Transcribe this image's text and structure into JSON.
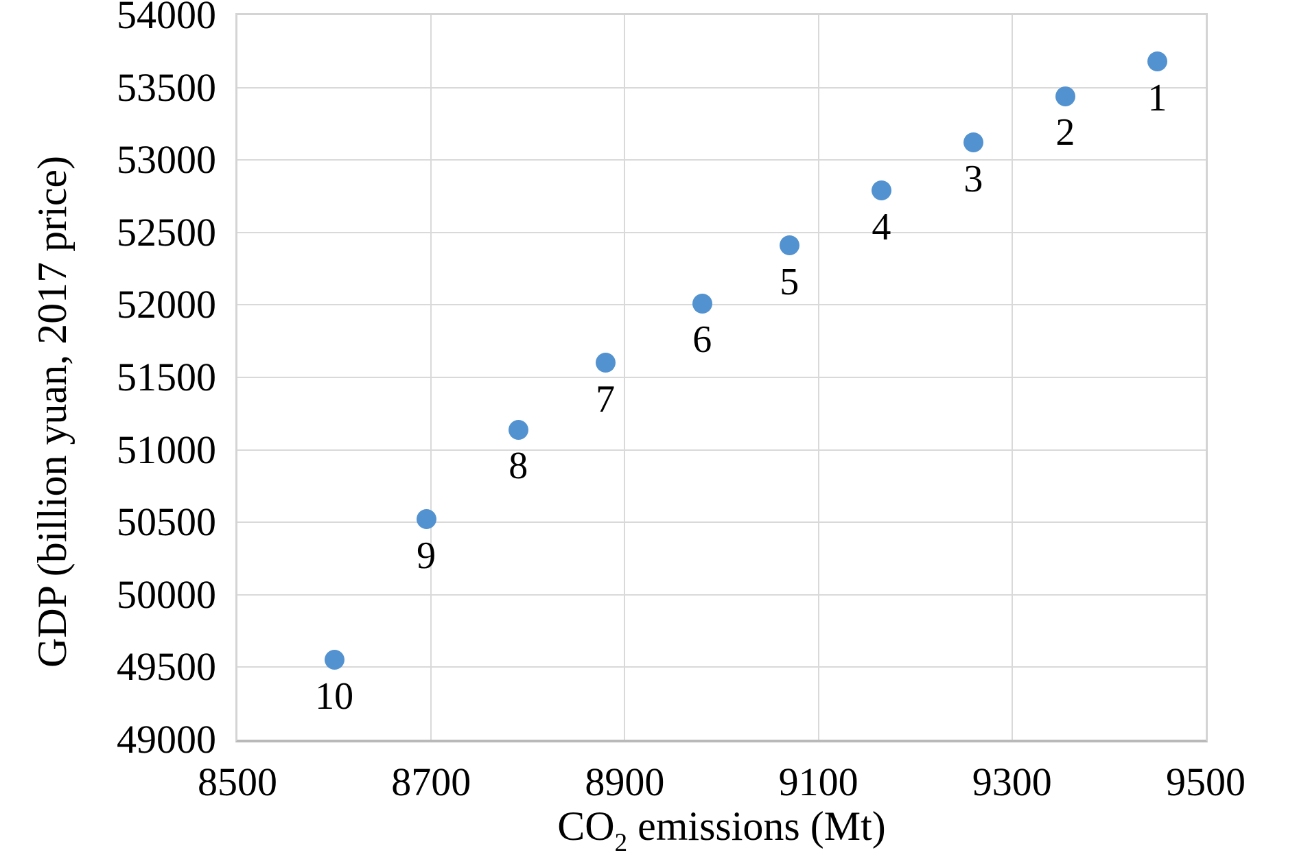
{
  "chart_data": {
    "type": "scatter",
    "title": "",
    "xlabel": {
      "prefix": "CO",
      "sub": "2",
      "suffix": " emissions (Mt)"
    },
    "ylabel": "GDP (billion yuan, 2017 price)",
    "xlim": [
      8500,
      9500
    ],
    "ylim": [
      49000,
      54000
    ],
    "xticks": [
      8500,
      8700,
      8900,
      9100,
      9300,
      9500
    ],
    "yticks": [
      49000,
      49500,
      50000,
      50500,
      51000,
      51500,
      52000,
      52500,
      53000,
      53500,
      54000
    ],
    "grid": true,
    "legend": "none",
    "marker_color": "#5292d0",
    "gridline_color": "#d9d9d9",
    "points": [
      {
        "label": "1",
        "x": 9450,
        "y": 53680
      },
      {
        "label": "2",
        "x": 9355,
        "y": 53440
      },
      {
        "label": "3",
        "x": 9260,
        "y": 53120
      },
      {
        "label": "4",
        "x": 9165,
        "y": 52790
      },
      {
        "label": "5",
        "x": 9070,
        "y": 52410
      },
      {
        "label": "6",
        "x": 8980,
        "y": 52010
      },
      {
        "label": "7",
        "x": 8880,
        "y": 51600
      },
      {
        "label": "8",
        "x": 8790,
        "y": 51140
      },
      {
        "label": "9",
        "x": 8695,
        "y": 50520
      },
      {
        "label": "10",
        "x": 8600,
        "y": 49550
      }
    ]
  }
}
